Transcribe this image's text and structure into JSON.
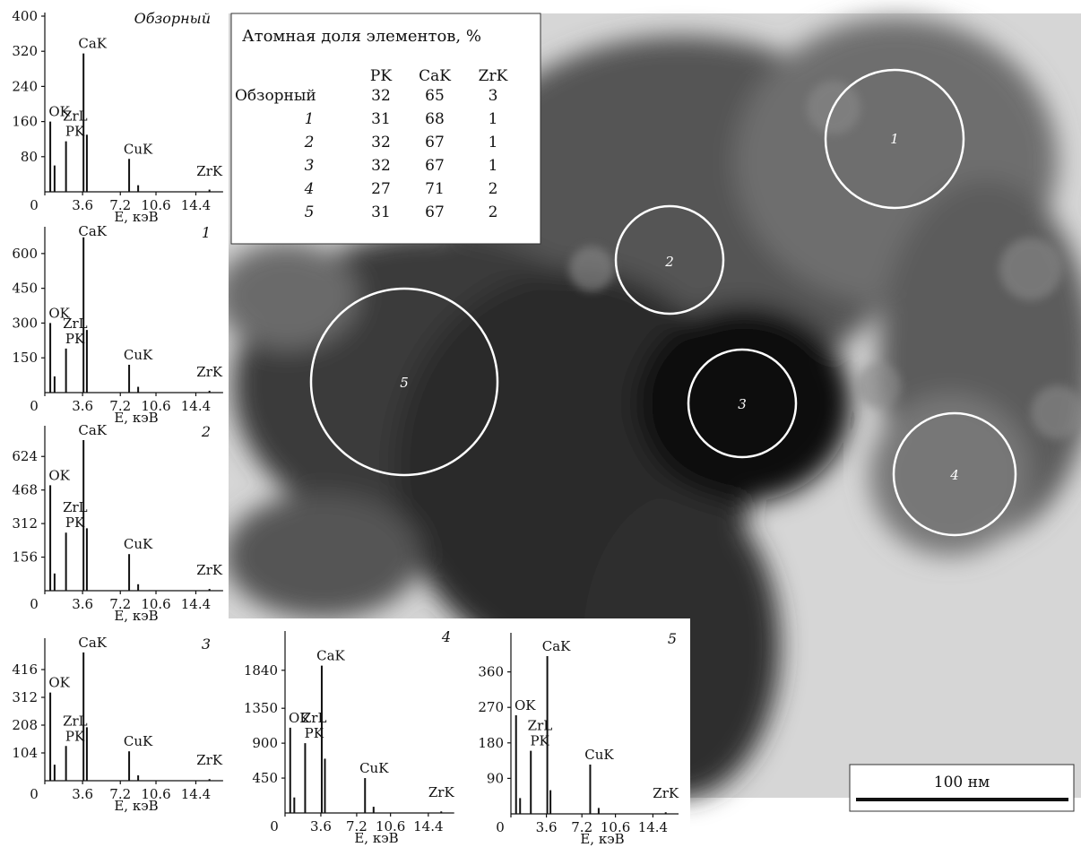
{
  "chart_data": [
    {
      "type": "stem",
      "title": "Обзорный",
      "x_label": "E, кэВ",
      "xlim": [
        0,
        17
      ],
      "xticks": [
        0,
        3.6,
        7.2,
        10.6,
        14.4
      ],
      "ylim": [
        0,
        400
      ],
      "yticks": [
        80,
        160,
        240,
        320,
        400
      ],
      "series": [
        {
          "name": "spectrum",
          "color": "#111111",
          "x": [
            0.52,
            0.93,
            2.02,
            3.69,
            4.01,
            8.04,
            8.9,
            15.7
          ],
          "values": [
            160,
            60,
            115,
            315,
            130,
            75,
            15,
            5
          ]
        }
      ],
      "annotations": [
        {
          "text": "OK",
          "x": 0.52
        },
        {
          "text": "PK",
          "x": 2.01
        },
        {
          "text": "ZrL",
          "x": 2.04
        },
        {
          "text": "CaK",
          "x": 3.69
        },
        {
          "text": "CuK",
          "x": 8.04
        },
        {
          "text": "ZrK",
          "x": 15.7
        }
      ]
    },
    {
      "type": "stem",
      "title": "1",
      "x_label": "E, кэВ",
      "xlim": [
        0,
        17
      ],
      "xticks": [
        0,
        3.6,
        7.2,
        10.6,
        14.4
      ],
      "ylim": [
        0,
        700
      ],
      "yticks": [
        150,
        300,
        450,
        600
      ],
      "series": [
        {
          "name": "spectrum",
          "color": "#111111",
          "x": [
            0.52,
            0.93,
            2.02,
            3.69,
            4.01,
            8.04,
            8.9,
            15.7
          ],
          "values": [
            300,
            70,
            190,
            670,
            270,
            120,
            25,
            8
          ]
        }
      ],
      "annotations": [
        {
          "text": "OK",
          "x": 0.52
        },
        {
          "text": "PK",
          "x": 2.01
        },
        {
          "text": "ZrL",
          "x": 2.04
        },
        {
          "text": "CaK",
          "x": 3.69
        },
        {
          "text": "CuK",
          "x": 8.04
        },
        {
          "text": "ZrK",
          "x": 15.7
        }
      ]
    },
    {
      "type": "stem",
      "title": "2",
      "x_label": "E, кэВ",
      "xlim": [
        0,
        17
      ],
      "xticks": [
        0,
        3.6,
        7.2,
        10.6,
        14.4
      ],
      "ylim": [
        0,
        750
      ],
      "yticks": [
        156,
        312,
        468,
        624
      ],
      "series": [
        {
          "name": "spectrum",
          "color": "#111111",
          "x": [
            0.52,
            0.93,
            2.02,
            3.69,
            4.01,
            8.04,
            8.9,
            15.7
          ],
          "values": [
            490,
            80,
            270,
            700,
            290,
            170,
            30,
            8
          ]
        }
      ],
      "annotations": [
        {
          "text": "OK",
          "x": 0.52
        },
        {
          "text": "PK",
          "x": 2.01
        },
        {
          "text": "ZrL",
          "x": 2.04
        },
        {
          "text": "CaK",
          "x": 3.69
        },
        {
          "text": "CuK",
          "x": 8.04
        },
        {
          "text": "ZrK",
          "x": 15.7
        }
      ]
    },
    {
      "type": "stem",
      "title": "3",
      "x_label": "E, кэВ",
      "xlim": [
        0,
        17
      ],
      "xticks": [
        0,
        3.6,
        7.2,
        10.6,
        14.4
      ],
      "ylim": [
        0,
        520
      ],
      "yticks": [
        104,
        208,
        312,
        416
      ],
      "series": [
        {
          "name": "spectrum",
          "color": "#111111",
          "x": [
            0.52,
            0.93,
            2.02,
            3.69,
            4.01,
            8.04,
            8.9,
            15.7
          ],
          "values": [
            330,
            60,
            130,
            480,
            200,
            110,
            20,
            6
          ]
        }
      ],
      "annotations": [
        {
          "text": "OK",
          "x": 0.52
        },
        {
          "text": "PK",
          "x": 2.01
        },
        {
          "text": "ZrL",
          "x": 2.04
        },
        {
          "text": "CaK",
          "x": 3.69
        },
        {
          "text": "CuK",
          "x": 8.04
        },
        {
          "text": "ZrK",
          "x": 15.7
        }
      ]
    },
    {
      "type": "stem",
      "title": "4",
      "x_label": "E, кэВ",
      "xlim": [
        0,
        17
      ],
      "xticks": [
        0,
        3.6,
        7.2,
        10.6,
        14.4
      ],
      "ylim": [
        0,
        2300
      ],
      "yticks": [
        450,
        900,
        1350,
        1840
      ],
      "series": [
        {
          "name": "spectrum",
          "color": "#111111",
          "x": [
            0.52,
            0.93,
            2.02,
            3.69,
            4.01,
            8.04,
            8.9,
            15.7
          ],
          "values": [
            1100,
            200,
            900,
            1900,
            700,
            450,
            80,
            20
          ]
        }
      ],
      "annotations": [
        {
          "text": "OK",
          "x": 0.52
        },
        {
          "text": "PK",
          "x": 2.01
        },
        {
          "text": "ZrL",
          "x": 2.04
        },
        {
          "text": "CaK",
          "x": 3.69
        },
        {
          "text": "CuK",
          "x": 8.04
        },
        {
          "text": "ZrK",
          "x": 15.7
        }
      ]
    },
    {
      "type": "stem",
      "title": "5",
      "x_label": "E, кэВ",
      "xlim": [
        0,
        17
      ],
      "xticks": [
        0,
        3.6,
        7.2,
        10.6,
        14.4
      ],
      "ylim": [
        0,
        450
      ],
      "yticks": [
        90,
        180,
        270,
        360
      ],
      "series": [
        {
          "name": "spectrum",
          "color": "#111111",
          "x": [
            0.52,
            0.93,
            2.02,
            3.69,
            4.01,
            8.04,
            8.9,
            15.7
          ],
          "values": [
            250,
            40,
            160,
            400,
            60,
            125,
            15,
            4
          ]
        }
      ],
      "annotations": [
        {
          "text": "OK",
          "x": 0.52
        },
        {
          "text": "PK",
          "x": 2.01
        },
        {
          "text": "ZrL",
          "x": 2.04
        },
        {
          "text": "CaK",
          "x": 3.69
        },
        {
          "text": "CuK",
          "x": 8.04
        },
        {
          "text": "ZrK",
          "x": 15.7
        }
      ]
    }
  ],
  "table": {
    "title": "Атомная доля элементов, %",
    "columns": [
      "PK",
      "CaK",
      "ZrK"
    ],
    "rows": [
      [
        "Обзорный",
        "32",
        "65",
        "3"
      ],
      [
        "1",
        "31",
        "68",
        "1"
      ],
      [
        "2",
        "32",
        "67",
        "1"
      ],
      [
        "3",
        "32",
        "67",
        "1"
      ],
      [
        "4",
        "27",
        "71",
        "2"
      ],
      [
        "5",
        "31",
        "67",
        "2"
      ]
    ]
  },
  "image": {
    "circles": [
      "1",
      "2",
      "3",
      "4",
      "5"
    ],
    "scale_bar": "100 нм"
  }
}
